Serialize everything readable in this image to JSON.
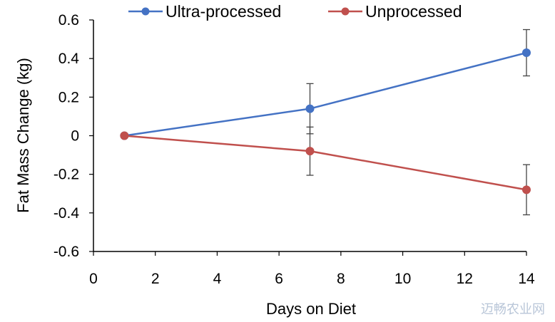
{
  "chart_data": {
    "type": "line",
    "xlabel": "Days on Diet",
    "ylabel": "Fat Mass Change (kg)",
    "xlim": [
      0,
      14
    ],
    "ylim": [
      -0.6,
      0.6
    ],
    "xticks": [
      0,
      2,
      4,
      6,
      8,
      10,
      12,
      14
    ],
    "yticks": [
      0.6,
      0.4,
      0.2,
      0,
      -0.2,
      -0.4,
      -0.6
    ],
    "xtick_labels": [
      "0",
      "2",
      "4",
      "6",
      "8",
      "10",
      "12",
      "14"
    ],
    "ytick_labels": [
      "0.6",
      "0.4",
      "0.2",
      "0",
      "-0.2",
      "-0.4",
      "-0.6"
    ],
    "grid": false,
    "legend_position": "top",
    "series": [
      {
        "name": "Ultra-processed",
        "color": "#4472c4",
        "x": [
          1,
          7,
          14
        ],
        "y": [
          0,
          0.14,
          0.43
        ],
        "error": [
          null,
          0.13,
          0.12
        ]
      },
      {
        "name": "Unprocessed",
        "color": "#c0504d",
        "x": [
          1,
          7,
          14
        ],
        "y": [
          0,
          -0.08,
          -0.28
        ],
        "error": [
          null,
          0.125,
          0.13
        ]
      }
    ]
  },
  "watermark": "迈畅农业网"
}
